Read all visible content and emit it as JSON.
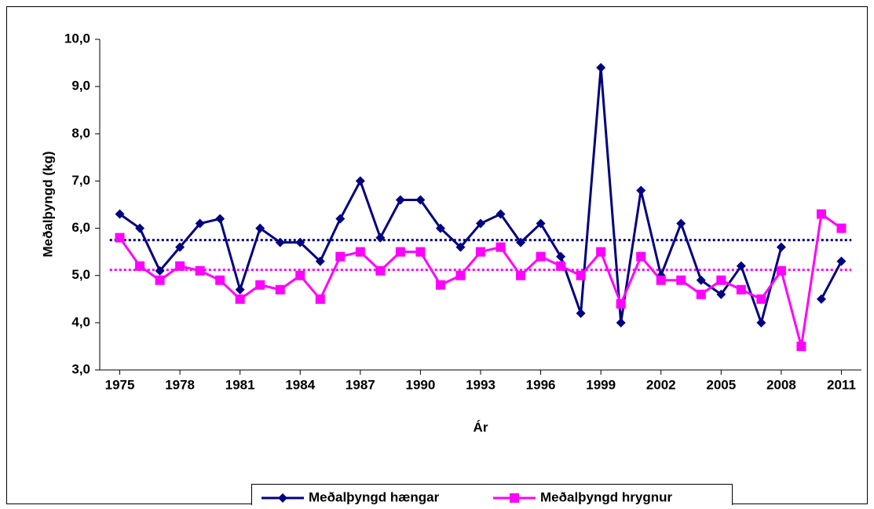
{
  "chart_data": {
    "type": "line",
    "y_axis_label": "Meðalþyngd (kg)",
    "x_axis_label": "Ár",
    "x": [
      1975,
      1976,
      1977,
      1978,
      1979,
      1980,
      1981,
      1982,
      1983,
      1984,
      1985,
      1986,
      1987,
      1988,
      1989,
      1990,
      1991,
      1992,
      1993,
      1994,
      1995,
      1996,
      1997,
      1998,
      1999,
      2000,
      2001,
      2002,
      2003,
      2004,
      2005,
      2006,
      2007,
      2008,
      2009,
      2010,
      2011
    ],
    "xlim": [
      1974,
      2012
    ],
    "xticks": [
      1975,
      1978,
      1981,
      1984,
      1987,
      1990,
      1993,
      1996,
      1999,
      2002,
      2005,
      2008,
      2011
    ],
    "ylim": [
      3,
      10
    ],
    "yticks": [
      {
        "value": 3,
        "label": "3,0"
      },
      {
        "value": 4,
        "label": "4,0"
      },
      {
        "value": 5,
        "label": "5,0"
      },
      {
        "value": 6,
        "label": "6,0"
      },
      {
        "value": 7,
        "label": "7,0"
      },
      {
        "value": 8,
        "label": "8,0"
      },
      {
        "value": 9,
        "label": "9,0"
      },
      {
        "value": 10,
        "label": "10,0"
      }
    ],
    "grid": false,
    "legend": "bottom",
    "series": [
      {
        "name": "Meðalþyngd hængar",
        "color": "#000080",
        "marker": "diamond",
        "values": [
          6.3,
          6.0,
          5.1,
          5.6,
          6.1,
          6.2,
          4.7,
          6.0,
          5.7,
          5.7,
          5.3,
          6.2,
          7.0,
          5.8,
          6.6,
          6.6,
          6.0,
          5.6,
          6.1,
          6.3,
          5.7,
          6.1,
          5.4,
          4.2,
          9.4,
          4.0,
          6.8,
          5.0,
          6.1,
          4.9,
          4.6,
          5.2,
          4.0,
          5.6,
          null,
          4.5,
          5.3
        ]
      },
      {
        "name": "Meðalþyngd hrygnur",
        "color": "#ff00ff",
        "marker": "square",
        "values": [
          5.8,
          5.2,
          4.9,
          5.2,
          5.1,
          4.9,
          4.5,
          4.8,
          4.7,
          5.0,
          4.5,
          5.4,
          5.5,
          5.1,
          5.5,
          5.5,
          4.8,
          5.0,
          5.5,
          5.6,
          5.0,
          5.4,
          5.2,
          5.0,
          5.5,
          4.4,
          5.4,
          4.9,
          4.9,
          4.6,
          4.9,
          4.7,
          4.5,
          5.1,
          3.5,
          6.3,
          6.0
        ]
      }
    ],
    "reference_lines": [
      {
        "value": 5.75,
        "color": "#000080",
        "style": "dotted"
      },
      {
        "value": 5.12,
        "color": "#ff00ff",
        "style": "dotted"
      }
    ]
  }
}
